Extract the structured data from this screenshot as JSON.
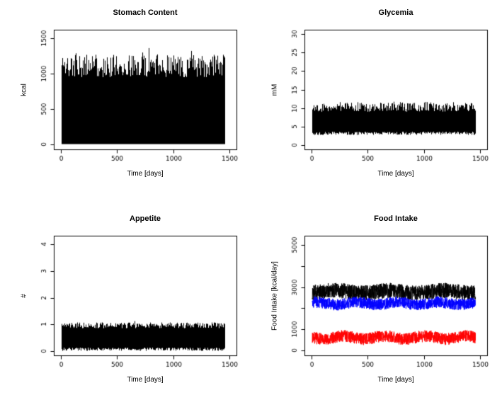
{
  "page": {
    "background": "#ffffff",
    "plot_color_black": "#000000",
    "plot_color_blue": "#0000ff",
    "plot_color_red": "#ff0000"
  },
  "chart_data": [
    {
      "id": "stomach-content",
      "type": "line",
      "title": "Stomach Content",
      "xlabel": "Time [days]",
      "ylabel": "kcal",
      "xlim": [
        -65,
        1565
      ],
      "ylim": [
        -75,
        1625
      ],
      "xticks": {
        "values": [
          0,
          500,
          1000,
          1500
        ],
        "labels": [
          "0",
          "500",
          "1000",
          "1500"
        ]
      },
      "yticks": {
        "values": [
          0,
          500,
          1000,
          1500
        ],
        "labels": [
          "0",
          "500",
          "1000",
          "1500"
        ]
      },
      "data_x_range": [
        5,
        1460
      ],
      "seed": 11,
      "grid": false,
      "legend": null,
      "series": [
        {
          "name": "stomach content oscillation envelope",
          "color": "#000000",
          "render": "band",
          "bottom_base": 0,
          "bottom_jitter": 0,
          "top_base": 950,
          "top_jitter": 320,
          "spike_chance": 0.05,
          "spike_extra": 280
        }
      ]
    },
    {
      "id": "glycemia",
      "type": "line",
      "title": "Glycemia",
      "xlabel": "Time [days]",
      "ylabel": "mM",
      "xlim": [
        -65,
        1565
      ],
      "ylim": [
        -1.2,
        31.2
      ],
      "xticks": {
        "values": [
          0,
          500,
          1000,
          1500
        ],
        "labels": [
          "0",
          "500",
          "1000",
          "1500"
        ]
      },
      "yticks": {
        "values": [
          0,
          5,
          10,
          15,
          20,
          25,
          30
        ],
        "labels": [
          "0",
          "5",
          "10",
          "15",
          "20",
          "25",
          "30"
        ]
      },
      "data_x_range": [
        5,
        1460
      ],
      "seed": 22,
      "grid": false,
      "legend": null,
      "series": [
        {
          "name": "glycemia oscillation envelope",
          "color": "#000000",
          "render": "band",
          "bottom_base": 2.7,
          "bottom_jitter": 0.9,
          "top_base": 9.0,
          "top_jitter": 2.6,
          "spike_chance": 0.03,
          "spike_extra": 1.5
        }
      ]
    },
    {
      "id": "appetite",
      "type": "line",
      "title": "Appetite",
      "xlabel": "Time [days]",
      "ylabel": "#",
      "xlim": [
        -65,
        1565
      ],
      "ylim": [
        -0.17,
        4.33
      ],
      "xticks": {
        "values": [
          0,
          500,
          1000,
          1500
        ],
        "labels": [
          "0",
          "500",
          "1000",
          "1500"
        ]
      },
      "yticks": {
        "values": [
          0,
          1,
          2,
          3,
          4
        ],
        "labels": [
          "0",
          "1",
          "2",
          "3",
          "4"
        ]
      },
      "data_x_range": [
        5,
        1460
      ],
      "seed": 33,
      "grid": false,
      "legend": null,
      "series": [
        {
          "name": "appetite oscillation envelope",
          "color": "#000000",
          "render": "band",
          "bottom_base": 0.0,
          "bottom_jitter": 0.12,
          "top_base": 0.85,
          "top_jitter": 0.22,
          "spike_chance": 0.02,
          "spike_extra": 0.06
        }
      ]
    },
    {
      "id": "food-intake",
      "type": "line",
      "title": "Food Intake",
      "xlabel": "Time [days]",
      "ylabel": "Food Intake [kcal/day]",
      "xlim": [
        -65,
        1565
      ],
      "ylim": [
        -220,
        5420
      ],
      "xticks": {
        "values": [
          0,
          500,
          1000,
          1500
        ],
        "labels": [
          "0",
          "500",
          "1000",
          "1500"
        ]
      },
      "yticks": {
        "values": [
          0,
          1000,
          2000,
          3000,
          4000,
          5000
        ],
        "labels": [
          "0",
          "1000",
          "",
          "3000",
          "",
          "5000"
        ]
      },
      "data_x_range": [
        5,
        1460
      ],
      "seed": 44,
      "grid": false,
      "legend": null,
      "series": [
        {
          "name": "food intake black trace",
          "color": "#000000",
          "render": "noise",
          "mean": 2780,
          "amp": 360,
          "wobble": 60,
          "wobble_cycles": 3,
          "points": 1300
        },
        {
          "name": "food intake blue trace",
          "color": "#0000ff",
          "render": "noise",
          "mean": 2230,
          "amp": 270,
          "wobble": 60,
          "wobble_cycles": 4,
          "points": 1300
        },
        {
          "name": "food intake red trace",
          "color": "#ff0000",
          "render": "noise",
          "mean": 620,
          "amp": 280,
          "wobble": 70,
          "wobble_cycles": 4,
          "points": 1300
        }
      ]
    }
  ]
}
